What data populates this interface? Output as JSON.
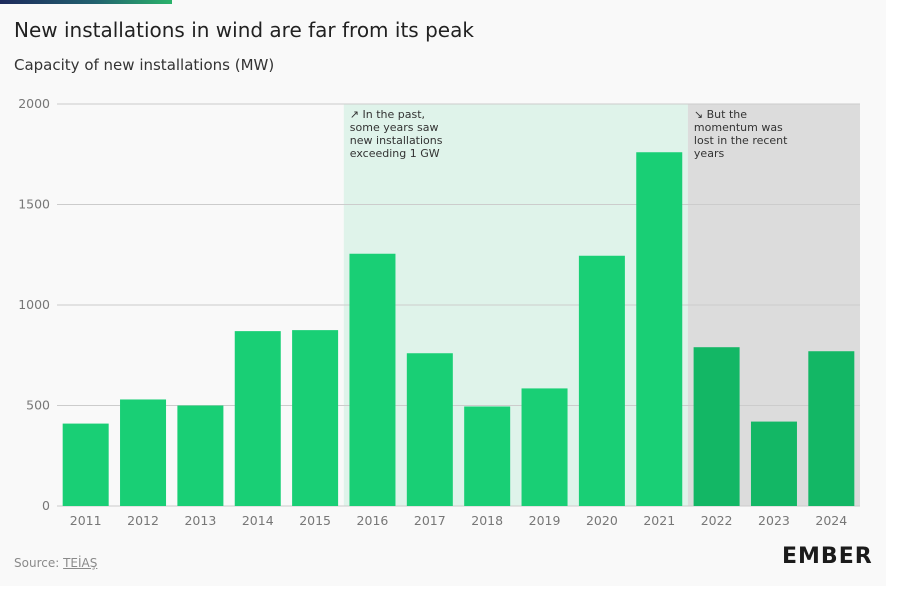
{
  "title": "New installations in wind are far from its peak",
  "subtitle": "Capacity of new installations (MW)",
  "source_label": "Source:",
  "source_link": "TEİAŞ",
  "brand": "EMBER",
  "colors": {
    "bar": "#19cf75",
    "bar_dark": "#13b765",
    "band_green": "#dff3ea",
    "band_grey": "#dcdcdc",
    "grid": "#cccccc",
    "tick_text": "#777777",
    "annotation_text": "#333333"
  },
  "chart_data": {
    "type": "bar",
    "categories": [
      "2011",
      "2012",
      "2013",
      "2014",
      "2015",
      "2016",
      "2017",
      "2018",
      "2019",
      "2020",
      "2021",
      "2022",
      "2023",
      "2024"
    ],
    "values": [
      410,
      530,
      500,
      870,
      875,
      1255,
      760,
      495,
      585,
      1245,
      1760,
      790,
      420,
      770
    ],
    "ylim": [
      0,
      2000
    ],
    "yticks": [
      0,
      500,
      1000,
      1500,
      2000
    ],
    "grid": true,
    "bands": [
      {
        "from": "2016",
        "to": "2021",
        "color": "#dff3ea",
        "annotation": [
          "↗ In the past,",
          "some years saw",
          "new installations",
          "exceeding 1 GW"
        ]
      },
      {
        "from": "2022",
        "to": "2024",
        "color": "#dcdcdc",
        "annotation": [
          "↘ But the",
          "momentum was",
          "lost in the recent",
          "years"
        ]
      }
    ]
  }
}
